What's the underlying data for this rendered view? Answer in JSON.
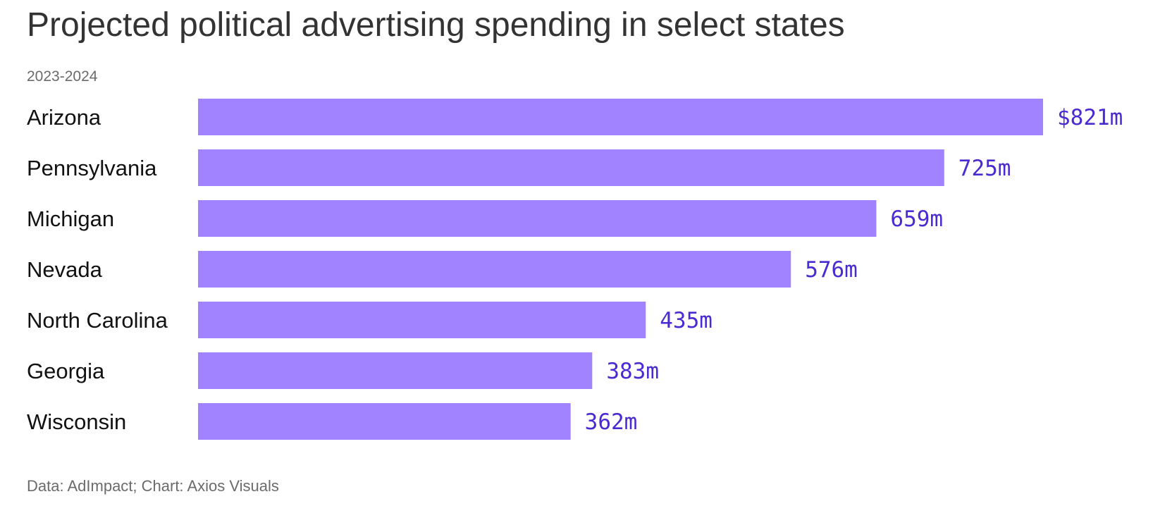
{
  "title": "Projected political advertising spending in select states",
  "subtitle": "2023-2024",
  "source": "Data: AdImpact; Chart: Axios Visuals",
  "colors": {
    "bar": "#a283ff",
    "value_label": "#4a2bd1",
    "title": "#333333",
    "muted": "#6b6b6b"
  },
  "chart_data": {
    "type": "bar",
    "orientation": "horizontal",
    "title": "Projected political advertising spending in select states",
    "subtitle": "2023-2024",
    "categories": [
      "Arizona",
      "Pennsylvania",
      "Michigan",
      "Nevada",
      "North Carolina",
      "Georgia",
      "Wisconsin"
    ],
    "values": [
      821,
      725,
      659,
      576,
      435,
      383,
      362
    ],
    "value_labels": [
      "$821m",
      "725m",
      "659m",
      "576m",
      "435m",
      "383m",
      "362m"
    ],
    "unit": "millions of dollars",
    "xlim": [
      0,
      821
    ],
    "grid": false,
    "legend": "none"
  }
}
